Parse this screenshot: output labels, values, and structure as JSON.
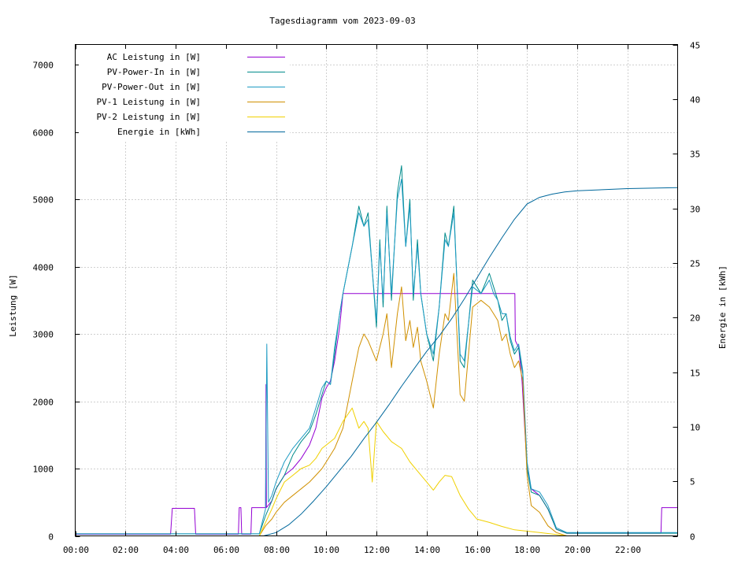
{
  "chart_data": {
    "type": "line",
    "title": "Tagesdiagramm vom 2023-09-03",
    "ylabel": "Leistung [W]",
    "y2label": "Energie in [kWh]",
    "xlim": [
      0,
      1440
    ],
    "ylim": [
      0,
      7300
    ],
    "y2lim": [
      0,
      45
    ],
    "x_ticks": [
      {
        "t": 0,
        "label": "00:00"
      },
      {
        "t": 120,
        "label": "02:00"
      },
      {
        "t": 240,
        "label": "04:00"
      },
      {
        "t": 360,
        "label": "06:00"
      },
      {
        "t": 480,
        "label": "08:00"
      },
      {
        "t": 600,
        "label": "10:00"
      },
      {
        "t": 720,
        "label": "12:00"
      },
      {
        "t": 840,
        "label": "14:00"
      },
      {
        "t": 960,
        "label": "16:00"
      },
      {
        "t": 1080,
        "label": "18:00"
      },
      {
        "t": 1200,
        "label": "20:00"
      },
      {
        "t": 1320,
        "label": "22:00"
      }
    ],
    "y_ticks": [
      0,
      1000,
      2000,
      3000,
      4000,
      5000,
      6000,
      7000
    ],
    "y2_ticks": [
      0,
      5,
      10,
      15,
      20,
      25,
      30,
      35,
      40,
      45
    ],
    "grid": true,
    "legend_position": "top-left",
    "series": [
      {
        "name": "AC Leistung in [W]",
        "color": "#9400d3",
        "axis": "y",
        "points": [
          [
            0,
            25
          ],
          [
            228,
            25
          ],
          [
            232,
            410
          ],
          [
            285,
            410
          ],
          [
            288,
            25
          ],
          [
            390,
            25
          ],
          [
            392,
            420
          ],
          [
            396,
            420
          ],
          [
            398,
            25
          ],
          [
            420,
            25
          ],
          [
            422,
            420
          ],
          [
            455,
            420
          ],
          [
            456,
            2250
          ],
          [
            457,
            420
          ],
          [
            470,
            520
          ],
          [
            480,
            700
          ],
          [
            500,
            900
          ],
          [
            520,
            1000
          ],
          [
            540,
            1150
          ],
          [
            560,
            1350
          ],
          [
            575,
            1600
          ],
          [
            590,
            2050
          ],
          [
            600,
            2200
          ],
          [
            610,
            2300
          ],
          [
            620,
            2600
          ],
          [
            632,
            3100
          ],
          [
            640,
            3600
          ],
          [
            1051,
            3600
          ],
          [
            1052,
            2900
          ],
          [
            1060,
            2800
          ],
          [
            1068,
            2300
          ],
          [
            1080,
            1000
          ],
          [
            1090,
            700
          ],
          [
            1110,
            600
          ],
          [
            1130,
            400
          ],
          [
            1150,
            100
          ],
          [
            1175,
            40
          ],
          [
            1400,
            40
          ],
          [
            1402,
            420
          ],
          [
            1440,
            420
          ]
        ]
      },
      {
        "name": "PV-Power-In in [W]",
        "color": "#008b8b",
        "axis": "y",
        "points": [
          [
            0,
            30
          ],
          [
            440,
            30
          ],
          [
            455,
            300
          ],
          [
            470,
            520
          ],
          [
            480,
            700
          ],
          [
            500,
            900
          ],
          [
            520,
            1200
          ],
          [
            540,
            1400
          ],
          [
            560,
            1550
          ],
          [
            575,
            1800
          ],
          [
            590,
            2100
          ],
          [
            600,
            2300
          ],
          [
            610,
            2250
          ],
          [
            620,
            2700
          ],
          [
            632,
            3300
          ],
          [
            640,
            3600
          ],
          [
            662,
            4300
          ],
          [
            678,
            4900
          ],
          [
            690,
            4600
          ],
          [
            700,
            4800
          ],
          [
            720,
            3100
          ],
          [
            728,
            4400
          ],
          [
            736,
            3400
          ],
          [
            745,
            4900
          ],
          [
            756,
            3500
          ],
          [
            770,
            5100
          ],
          [
            780,
            5500
          ],
          [
            790,
            4300
          ],
          [
            800,
            5000
          ],
          [
            808,
            3500
          ],
          [
            818,
            4400
          ],
          [
            826,
            3600
          ],
          [
            840,
            3000
          ],
          [
            856,
            2600
          ],
          [
            870,
            3400
          ],
          [
            884,
            4500
          ],
          [
            892,
            4300
          ],
          [
            905,
            4900
          ],
          [
            920,
            2600
          ],
          [
            930,
            2500
          ],
          [
            950,
            3800
          ],
          [
            970,
            3600
          ],
          [
            990,
            3900
          ],
          [
            1000,
            3700
          ],
          [
            1010,
            3500
          ],
          [
            1020,
            3200
          ],
          [
            1030,
            3300
          ],
          [
            1040,
            2900
          ],
          [
            1050,
            2700
          ],
          [
            1060,
            2800
          ],
          [
            1070,
            2400
          ],
          [
            1080,
            1000
          ],
          [
            1090,
            650
          ],
          [
            1110,
            600
          ],
          [
            1130,
            400
          ],
          [
            1150,
            100
          ],
          [
            1175,
            40
          ],
          [
            1440,
            40
          ]
        ]
      },
      {
        "name": "PV-Power-Out in [W]",
        "color": "#1e9bc3",
        "axis": "y",
        "points": [
          [
            0,
            30
          ],
          [
            440,
            30
          ],
          [
            455,
            400
          ],
          [
            458,
            2850
          ],
          [
            462,
            500
          ],
          [
            470,
            600
          ],
          [
            480,
            800
          ],
          [
            500,
            1100
          ],
          [
            520,
            1300
          ],
          [
            540,
            1450
          ],
          [
            560,
            1600
          ],
          [
            575,
            1900
          ],
          [
            590,
            2200
          ],
          [
            600,
            2300
          ],
          [
            610,
            2250
          ],
          [
            620,
            2800
          ],
          [
            632,
            3300
          ],
          [
            640,
            3600
          ],
          [
            662,
            4300
          ],
          [
            678,
            4800
          ],
          [
            690,
            4600
          ],
          [
            700,
            4700
          ],
          [
            720,
            3200
          ],
          [
            728,
            4300
          ],
          [
            736,
            3500
          ],
          [
            745,
            4800
          ],
          [
            756,
            3600
          ],
          [
            770,
            5000
          ],
          [
            780,
            5300
          ],
          [
            790,
            4300
          ],
          [
            800,
            4900
          ],
          [
            808,
            3600
          ],
          [
            818,
            4300
          ],
          [
            826,
            3600
          ],
          [
            840,
            3000
          ],
          [
            856,
            2700
          ],
          [
            870,
            3400
          ],
          [
            884,
            4400
          ],
          [
            892,
            4300
          ],
          [
            905,
            4800
          ],
          [
            920,
            2700
          ],
          [
            930,
            2600
          ],
          [
            950,
            3700
          ],
          [
            970,
            3600
          ],
          [
            990,
            3800
          ],
          [
            1000,
            3600
          ],
          [
            1010,
            3500
          ],
          [
            1020,
            3300
          ],
          [
            1030,
            3300
          ],
          [
            1040,
            2950
          ],
          [
            1050,
            2750
          ],
          [
            1060,
            2850
          ],
          [
            1070,
            2450
          ],
          [
            1080,
            1100
          ],
          [
            1090,
            700
          ],
          [
            1110,
            650
          ],
          [
            1130,
            450
          ],
          [
            1150,
            120
          ],
          [
            1175,
            50
          ],
          [
            1440,
            50
          ]
        ]
      },
      {
        "name": "PV-1 Leistung in [W]",
        "color": "#d09000",
        "axis": "y",
        "points": [
          [
            0,
            0
          ],
          [
            440,
            0
          ],
          [
            455,
            150
          ],
          [
            470,
            250
          ],
          [
            480,
            350
          ],
          [
            500,
            500
          ],
          [
            520,
            600
          ],
          [
            540,
            700
          ],
          [
            560,
            800
          ],
          [
            575,
            900
          ],
          [
            590,
            1000
          ],
          [
            600,
            1100
          ],
          [
            620,
            1300
          ],
          [
            640,
            1600
          ],
          [
            662,
            2300
          ],
          [
            678,
            2800
          ],
          [
            690,
            3000
          ],
          [
            700,
            2900
          ],
          [
            720,
            2600
          ],
          [
            736,
            3000
          ],
          [
            745,
            3300
          ],
          [
            756,
            2500
          ],
          [
            770,
            3300
          ],
          [
            780,
            3700
          ],
          [
            790,
            2900
          ],
          [
            800,
            3200
          ],
          [
            808,
            2800
          ],
          [
            818,
            3100
          ],
          [
            826,
            2600
          ],
          [
            840,
            2300
          ],
          [
            856,
            1900
          ],
          [
            870,
            2700
          ],
          [
            884,
            3300
          ],
          [
            892,
            3200
          ],
          [
            905,
            3900
          ],
          [
            920,
            2100
          ],
          [
            930,
            2000
          ],
          [
            950,
            3400
          ],
          [
            970,
            3500
          ],
          [
            990,
            3400
          ],
          [
            1000,
            3300
          ],
          [
            1010,
            3200
          ],
          [
            1020,
            2900
          ],
          [
            1030,
            3000
          ],
          [
            1040,
            2700
          ],
          [
            1050,
            2500
          ],
          [
            1060,
            2600
          ],
          [
            1070,
            2300
          ],
          [
            1080,
            900
          ],
          [
            1090,
            450
          ],
          [
            1110,
            350
          ],
          [
            1130,
            150
          ],
          [
            1150,
            50
          ],
          [
            1175,
            0
          ],
          [
            1440,
            0
          ]
        ]
      },
      {
        "name": "PV-2 Leistung in [W]",
        "color": "#f0d000",
        "axis": "y",
        "points": [
          [
            0,
            0
          ],
          [
            440,
            0
          ],
          [
            455,
            200
          ],
          [
            470,
            400
          ],
          [
            480,
            550
          ],
          [
            500,
            800
          ],
          [
            520,
            900
          ],
          [
            540,
            1000
          ],
          [
            560,
            1050
          ],
          [
            575,
            1150
          ],
          [
            590,
            1300
          ],
          [
            600,
            1350
          ],
          [
            620,
            1450
          ],
          [
            640,
            1700
          ],
          [
            662,
            1900
          ],
          [
            678,
            1600
          ],
          [
            690,
            1700
          ],
          [
            700,
            1600
          ],
          [
            710,
            800
          ],
          [
            720,
            1700
          ],
          [
            736,
            1550
          ],
          [
            756,
            1400
          ],
          [
            780,
            1300
          ],
          [
            800,
            1100
          ],
          [
            820,
            950
          ],
          [
            840,
            800
          ],
          [
            856,
            680
          ],
          [
            870,
            800
          ],
          [
            884,
            900
          ],
          [
            900,
            880
          ],
          [
            920,
            600
          ],
          [
            940,
            400
          ],
          [
            960,
            250
          ],
          [
            990,
            200
          ],
          [
            1020,
            140
          ],
          [
            1050,
            90
          ],
          [
            1080,
            70
          ],
          [
            1110,
            50
          ],
          [
            1150,
            20
          ],
          [
            1175,
            0
          ],
          [
            1440,
            0
          ]
        ]
      },
      {
        "name": "Energie in [kWh]",
        "color": "#00689c",
        "axis": "y2",
        "points": [
          [
            0,
            0
          ],
          [
            450,
            0
          ],
          [
            480,
            0.3
          ],
          [
            510,
            1.0
          ],
          [
            540,
            2.0
          ],
          [
            570,
            3.2
          ],
          [
            600,
            4.5
          ],
          [
            630,
            5.9
          ],
          [
            660,
            7.3
          ],
          [
            690,
            8.9
          ],
          [
            720,
            10.4
          ],
          [
            750,
            12.0
          ],
          [
            780,
            13.7
          ],
          [
            810,
            15.3
          ],
          [
            840,
            16.9
          ],
          [
            870,
            18.3
          ],
          [
            900,
            19.9
          ],
          [
            930,
            21.7
          ],
          [
            960,
            23.6
          ],
          [
            990,
            25.5
          ],
          [
            1020,
            27.3
          ],
          [
            1050,
            29.0
          ],
          [
            1080,
            30.4
          ],
          [
            1110,
            31.0
          ],
          [
            1140,
            31.3
          ],
          [
            1170,
            31.5
          ],
          [
            1200,
            31.6
          ],
          [
            1260,
            31.7
          ],
          [
            1320,
            31.8
          ],
          [
            1440,
            31.9
          ]
        ]
      }
    ]
  }
}
